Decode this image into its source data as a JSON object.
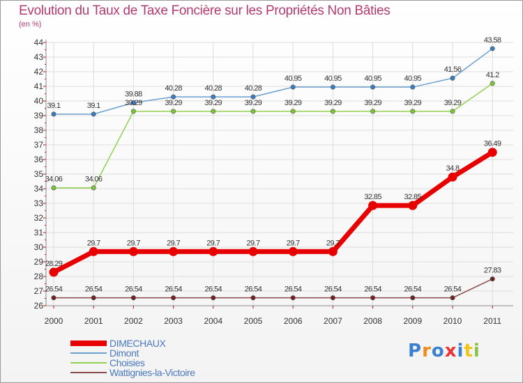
{
  "chart_data": {
    "type": "line",
    "title": "Evolution du Taux de Taxe Foncière sur les Propriétés Non Bâties",
    "ylabel": "(en %)",
    "xlabel": "",
    "x": [
      "2000",
      "2001",
      "2002",
      "2003",
      "2004",
      "2005",
      "2006",
      "2007",
      "2008",
      "2009",
      "2010",
      "2011"
    ],
    "ylim": [
      26,
      44
    ],
    "yticks": [
      26,
      27,
      28,
      29,
      30,
      31,
      32,
      33,
      34,
      35,
      36,
      37,
      38,
      39,
      40,
      41,
      42,
      43,
      44
    ],
    "grid": true,
    "legend_position": "bottom-left",
    "series": [
      {
        "name": "DIMECHAUX",
        "color": "#e60000",
        "values": [
          28.29,
          29.7,
          29.7,
          29.7,
          29.7,
          29.7,
          29.7,
          29.7,
          32.85,
          32.85,
          34.8,
          36.49
        ],
        "labels": [
          "28.29",
          "29.7",
          "29.7",
          "29.7",
          "29.7",
          "29.7",
          "29.7",
          "29.7",
          "32.85",
          "32.85",
          "34.8",
          "36.49"
        ]
      },
      {
        "name": "Dimont",
        "color": "#6a9fd0",
        "marker_color": "#3b7bbf",
        "values": [
          39.1,
          39.1,
          39.88,
          40.28,
          40.28,
          40.28,
          40.95,
          40.95,
          40.95,
          40.95,
          41.56,
          43.58
        ],
        "labels": [
          "39.1",
          "39.1",
          "39.88",
          "40.28",
          "40.28",
          "40.28",
          "40.95",
          "40.95",
          "40.95",
          "40.95",
          "41.56",
          "43.58"
        ]
      },
      {
        "name": "Choisies",
        "color": "#8fd14f",
        "marker_color": "#7cc23a",
        "values": [
          34.06,
          34.06,
          39.29,
          39.29,
          39.29,
          39.29,
          39.29,
          39.29,
          39.29,
          39.29,
          39.29,
          41.2
        ],
        "labels": [
          "34.06",
          "34.06",
          "39.29",
          "39.29",
          "39.29",
          "39.29",
          "39.29",
          "39.29",
          "39.29",
          "39.29",
          "39.29",
          "41.2"
        ]
      },
      {
        "name": "Wattignies-la-Victoire",
        "color": "#8a4a4a",
        "marker_color": "#6e2222",
        "values": [
          26.54,
          26.54,
          26.54,
          26.54,
          26.54,
          26.54,
          26.54,
          26.54,
          26.54,
          26.54,
          26.54,
          27.83
        ],
        "labels": [
          "26.54",
          "26.54",
          "26.54",
          "26.54",
          "26.54",
          "26.54",
          "26.54",
          "26.54",
          "26.54",
          "26.54",
          "26.54",
          "27.83"
        ]
      }
    ]
  },
  "logo": {
    "text": "Proxiti"
  }
}
